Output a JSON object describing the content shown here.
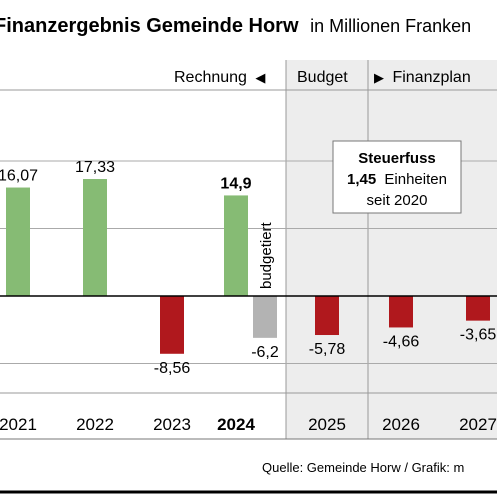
{
  "chart_data": {
    "type": "bar",
    "title": "Finanzergebnis Gemeinde Horw",
    "subtitle": "in Millionen Franken",
    "categories": [
      "2021",
      "2022",
      "2023",
      "2024",
      "2025",
      "2026",
      "2027"
    ],
    "emphasized_category": "2024",
    "values": [
      16.07,
      17.33,
      -8.56,
      14.9,
      -5.78,
      -4.66,
      -3.65
    ],
    "value_labels": [
      "16,07",
      "17,33",
      "-8,56",
      "14,9",
      "-5,78",
      "-4,66",
      "-3,65"
    ],
    "extra_bar": {
      "category": "2024",
      "value": -6.2,
      "value_label": "-6,2",
      "label": "budgetiert",
      "color": "#b3b3b3"
    },
    "ylim": [
      -16,
      30
    ],
    "grid": true,
    "segments": [
      {
        "label": "Rechnung",
        "marker": "◀",
        "categories": [
          "2021",
          "2022",
          "2023",
          "2024"
        ]
      },
      {
        "label": "Budget",
        "marker": "",
        "categories": [
          "2025"
        ]
      },
      {
        "label": "Finanzplan",
        "marker": "▶",
        "categories": [
          "2026",
          "2027"
        ]
      }
    ],
    "colors": {
      "positive": "#86bb74",
      "negative": "#b0181d",
      "budget_shade": "#ededed"
    },
    "annotation": {
      "title": "Steuerfuss",
      "value": "1,45",
      "unit": "Einheiten",
      "since": "seit 2020"
    },
    "source": "Quelle: Gemeinde Horw / Grafik: m"
  }
}
